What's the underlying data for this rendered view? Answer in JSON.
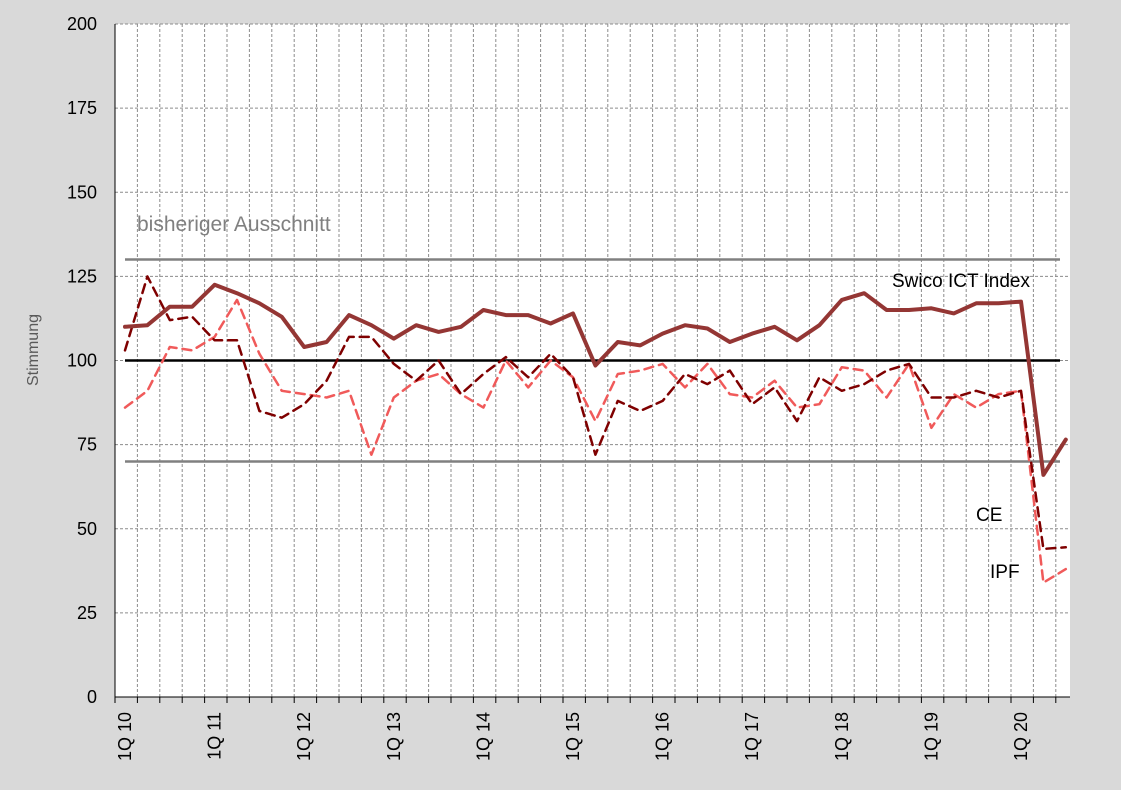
{
  "chart_data": {
    "type": "line",
    "title": "",
    "xlabel": "",
    "ylabel": "Stimmung",
    "ylim": [
      0,
      200
    ],
    "yticks": [
      0,
      25,
      50,
      75,
      100,
      125,
      150,
      175,
      200
    ],
    "grid": true,
    "x_tick_labels": [
      {
        "index": 0,
        "label": "1Q 10"
      },
      {
        "index": 4,
        "label": "1Q 11"
      },
      {
        "index": 8,
        "label": "1Q 12"
      },
      {
        "index": 12,
        "label": "1Q 13"
      },
      {
        "index": 16,
        "label": "1Q 14"
      },
      {
        "index": 20,
        "label": "1Q 15"
      },
      {
        "index": 24,
        "label": "1Q 16"
      },
      {
        "index": 28,
        "label": "1Q 17"
      },
      {
        "index": 32,
        "label": "1Q 18"
      },
      {
        "index": 36,
        "label": "1Q 19"
      },
      {
        "index": 40,
        "label": "1Q 20"
      }
    ],
    "num_points": 43,
    "reference_lines": [
      {
        "value": 130,
        "color": "#808080"
      },
      {
        "value": 100,
        "color": "#000000"
      },
      {
        "value": 70,
        "color": "#808080"
      }
    ],
    "band_label": "bisheriger Ausschnitt",
    "series": [
      {
        "name": "Swico ICT Index",
        "color": "#943634",
        "style": "solid",
        "values": [
          110,
          110.5,
          116,
          116,
          122.5,
          120,
          117,
          113,
          104,
          105.5,
          113.5,
          110.5,
          106.5,
          110.5,
          108.5,
          110,
          115,
          113.5,
          113.5,
          111,
          114,
          98.5,
          105.5,
          104.5,
          108,
          110.5,
          109.5,
          105.5,
          108,
          110,
          106,
          110.5,
          118,
          120,
          115,
          115,
          115.5,
          114,
          117,
          117,
          117.5,
          66,
          76.5
        ]
      },
      {
        "name": "CE",
        "color": "#7f0000",
        "style": "dashed",
        "values": [
          103,
          125,
          112,
          113,
          106,
          106,
          85,
          83,
          87,
          94,
          107,
          107,
          99,
          94,
          100,
          90,
          96,
          101,
          95,
          102,
          95,
          72,
          88,
          85,
          88,
          96,
          93,
          97,
          87,
          92,
          82,
          95,
          91,
          93,
          97,
          99,
          89,
          89,
          91,
          89,
          91,
          44,
          44.5
        ]
      },
      {
        "name": "IPF",
        "color": "#f05a5a",
        "style": "dashed",
        "values": [
          86,
          91,
          104,
          103,
          107,
          118,
          102,
          91,
          90,
          89,
          91,
          72,
          89,
          94,
          96,
          90,
          86,
          100,
          92,
          100,
          95,
          82,
          96,
          97,
          99,
          92,
          99,
          90,
          89,
          94,
          86,
          87,
          98,
          97,
          89,
          99,
          80,
          90,
          86,
          90,
          91,
          34,
          38
        ]
      }
    ]
  }
}
